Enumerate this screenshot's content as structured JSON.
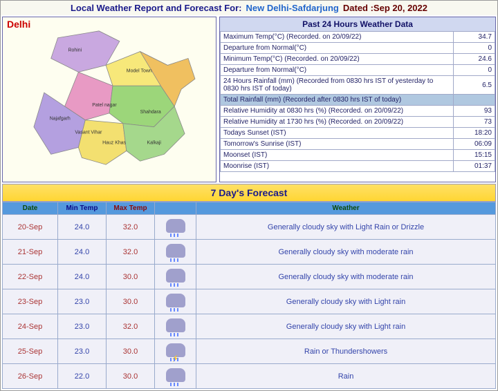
{
  "header": {
    "prefix": "Local Weather Report and Forecast For:",
    "location": "New Delhi-Safdarjung",
    "date_label": "Dated :Sep 20, 2022"
  },
  "map_title": "Delhi",
  "past_data": {
    "title": "Past 24 Hours Weather Data",
    "rows": [
      {
        "label": "Maximum Temp(°C) (Recorded. on 20/09/22)",
        "value": "34.7",
        "hl": false
      },
      {
        "label": "Departure from Normal(°C)",
        "value": "0",
        "hl": false
      },
      {
        "label": "Minimum Temp(°C) (Recorded. on 20/09/22)",
        "value": "24.6",
        "hl": false
      },
      {
        "label": "Departure from Normal(°C)",
        "value": "0",
        "hl": false
      },
      {
        "label": "24 Hours Rainfall (mm) (Recorded from 0830 hrs IST of yesterday to 0830 hrs IST of today)",
        "value": "6.5",
        "hl": false
      },
      {
        "label": "Total Rainfall (mm) (Recorded after 0830 hrs IST of today)",
        "value": "",
        "hl": true
      },
      {
        "label": "Relative Humidity at 0830 hrs (%) (Recorded. on 20/09/22)",
        "value": "93",
        "hl": false
      },
      {
        "label": "Relative Humidity at 1730 hrs (%) (Recorded. on 20/09/22)",
        "value": "73",
        "hl": false
      },
      {
        "label": "Todays Sunset (IST)",
        "value": "18:20",
        "hl": false
      },
      {
        "label": "Tomorrow's Sunrise (IST)",
        "value": "06:09",
        "hl": false
      },
      {
        "label": "Moonset (IST)",
        "value": "15:15",
        "hl": false
      },
      {
        "label": "Moonrise (IST)",
        "value": "01:37",
        "hl": false
      }
    ]
  },
  "forecast": {
    "title": "7 Day's Forecast",
    "columns": [
      "Date",
      "Min Temp",
      "Max Temp",
      "",
      "Weather"
    ],
    "rows": [
      {
        "date": "20-Sep",
        "min": "24.0",
        "max": "32.0",
        "icon": "rain",
        "weather": "Generally cloudy sky with Light Rain or Drizzle"
      },
      {
        "date": "21-Sep",
        "min": "24.0",
        "max": "32.0",
        "icon": "rain",
        "weather": "Generally cloudy sky with moderate rain"
      },
      {
        "date": "22-Sep",
        "min": "24.0",
        "max": "30.0",
        "icon": "rain",
        "weather": "Generally cloudy sky with moderate rain"
      },
      {
        "date": "23-Sep",
        "min": "23.0",
        "max": "30.0",
        "icon": "rain",
        "weather": "Generally cloudy sky with Light rain"
      },
      {
        "date": "24-Sep",
        "min": "23.0",
        "max": "32.0",
        "icon": "rain",
        "weather": "Generally cloudy sky with Light rain"
      },
      {
        "date": "25-Sep",
        "min": "23.0",
        "max": "30.0",
        "icon": "storm",
        "weather": "Rain or Thundershowers"
      },
      {
        "date": "26-Sep",
        "min": "22.0",
        "max": "30.0",
        "icon": "rain",
        "weather": "Rain"
      }
    ]
  }
}
